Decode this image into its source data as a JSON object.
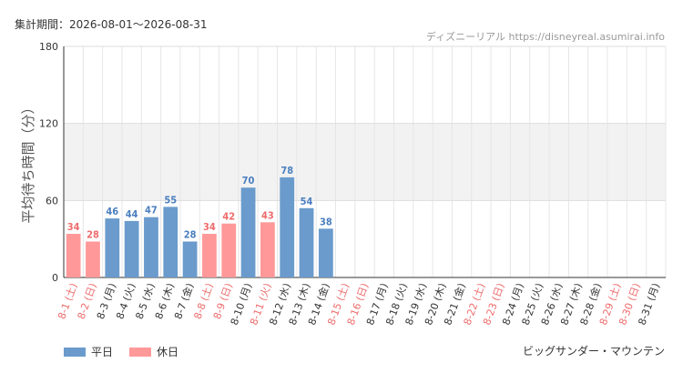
{
  "header": {
    "period": "集計期間：2026-08-01～2026-08-31",
    "source": "ディズニーリアル https://disneyreal.asumirai.info"
  },
  "footer": {
    "subject": "ビッグサンダー・マウンテン"
  },
  "colors": {
    "weekday": "#6a9bcc",
    "holiday": "#ff9999",
    "weekday_label": "#4a7fbf",
    "holiday_label": "#ee6b6b",
    "band": "#f2f2f2"
  },
  "chart_data": {
    "type": "bar",
    "ylabel": "平均待ち時間（分）",
    "ylim": [
      0,
      180
    ],
    "yticks": [
      0,
      60,
      120,
      180
    ],
    "shaded_band": [
      60,
      120
    ],
    "legend": [
      {
        "name": "平日",
        "key": "weekday"
      },
      {
        "name": "休日",
        "key": "holiday"
      }
    ],
    "categories": [
      "8-1 (土)",
      "8-2 (日)",
      "8-3 (月)",
      "8-4 (火)",
      "8-5 (水)",
      "8-6 (木)",
      "8-7 (金)",
      "8-8 (土)",
      "8-9 (日)",
      "8-10 (月)",
      "8-11 (火)",
      "8-12 (水)",
      "8-13 (木)",
      "8-14 (金)",
      "8-15 (土)",
      "8-16 (日)",
      "8-17 (月)",
      "8-18 (火)",
      "8-19 (水)",
      "8-20 (木)",
      "8-21 (金)",
      "8-22 (土)",
      "8-23 (日)",
      "8-24 (月)",
      "8-25 (火)",
      "8-26 (水)",
      "8-27 (木)",
      "8-28 (金)",
      "8-29 (土)",
      "8-30 (日)",
      "8-31 (月)"
    ],
    "day_types": [
      "holiday",
      "holiday",
      "weekday",
      "weekday",
      "weekday",
      "weekday",
      "weekday",
      "holiday",
      "holiday",
      "weekday",
      "holiday",
      "weekday",
      "weekday",
      "weekday",
      "holiday",
      "holiday",
      "weekday",
      "weekday",
      "weekday",
      "weekday",
      "weekday",
      "holiday",
      "holiday",
      "weekday",
      "weekday",
      "weekday",
      "weekday",
      "weekday",
      "holiday",
      "holiday",
      "weekday"
    ],
    "values": [
      34,
      28,
      46,
      44,
      47,
      55,
      28,
      34,
      42,
      70,
      43,
      78,
      54,
      38,
      null,
      null,
      null,
      null,
      null,
      null,
      null,
      null,
      null,
      null,
      null,
      null,
      null,
      null,
      null,
      null,
      null
    ]
  }
}
